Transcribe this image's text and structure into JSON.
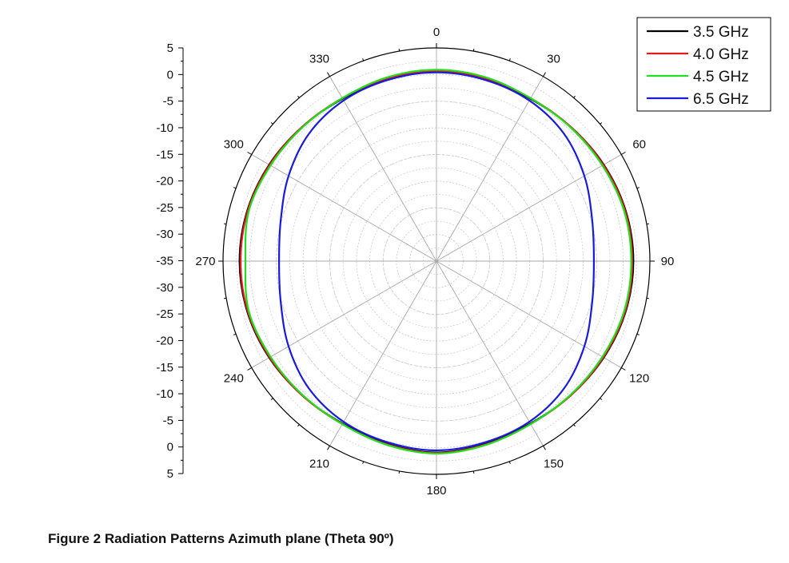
{
  "caption": "Figure 2 Radiation Patterns Azimuth plane (Theta 90º)",
  "chart_data": {
    "type": "polar-line",
    "title": "",
    "angle_direction": "clockwise",
    "angle_zero": "top",
    "angle_ticks": [
      0,
      30,
      60,
      90,
      120,
      150,
      180,
      210,
      240,
      270,
      300,
      330
    ],
    "radial_range": [
      -35,
      5
    ],
    "radial_axis_ticks": [
      "5",
      "0",
      "-5",
      "-10",
      "-15",
      "-20",
      "-25",
      "-30",
      "-35",
      "-30",
      "-25",
      "-20",
      "-15",
      "-10",
      "-5",
      "0",
      "5"
    ],
    "grid": true,
    "legend_position": "top-right",
    "series": [
      {
        "name": "3.5 GHz",
        "color": "#000000",
        "angles": [
          0,
          15,
          30,
          45,
          60,
          75,
          90,
          105,
          120,
          135,
          150,
          165,
          180,
          195,
          210,
          225,
          240,
          255,
          270,
          285,
          300,
          315,
          330,
          345
        ],
        "values": [
          0.5,
          0.4,
          0.2,
          0.6,
          1.2,
          1.7,
          1.9,
          1.7,
          1.2,
          0.6,
          0.2,
          0.5,
          0.9,
          0.5,
          0.2,
          0.6,
          1.2,
          1.7,
          1.9,
          1.7,
          1.2,
          0.6,
          0.2,
          0.4
        ]
      },
      {
        "name": "4.0 GHz",
        "color": "#e31a1c",
        "angles": [
          0,
          15,
          30,
          45,
          60,
          75,
          90,
          105,
          120,
          135,
          150,
          165,
          180,
          195,
          210,
          225,
          240,
          255,
          270,
          285,
          300,
          315,
          330,
          345
        ],
        "values": [
          0.6,
          0.5,
          0.3,
          0.6,
          1.1,
          1.6,
          1.7,
          1.6,
          1.1,
          0.6,
          0.3,
          0.6,
          1.0,
          0.6,
          0.3,
          0.6,
          1.1,
          1.6,
          1.7,
          1.6,
          1.1,
          0.6,
          0.3,
          0.5
        ]
      },
      {
        "name": "4.5 GHz",
        "color": "#1fe01f",
        "angles": [
          0,
          15,
          30,
          45,
          60,
          75,
          90,
          105,
          120,
          135,
          150,
          165,
          180,
          195,
          210,
          225,
          240,
          255,
          270,
          285,
          300,
          315,
          330,
          345
        ],
        "values": [
          0.9,
          0.7,
          0.3,
          0.5,
          0.9,
          1.4,
          1.5,
          1.4,
          0.9,
          0.5,
          0.3,
          0.7,
          1.1,
          0.7,
          0.3,
          0.5,
          0.9,
          1.4,
          0.8,
          1.4,
          0.9,
          0.5,
          0.3,
          0.7
        ]
      },
      {
        "name": "6.5 GHz",
        "color": "#1a1adc",
        "angles": [
          0,
          15,
          30,
          45,
          60,
          75,
          90,
          105,
          120,
          135,
          150,
          165,
          180,
          195,
          210,
          225,
          240,
          255,
          270,
          285,
          300,
          315,
          330,
          345
        ],
        "values": [
          0.4,
          0.2,
          -0.2,
          -1.2,
          -3.0,
          -4.8,
          -5.5,
          -4.8,
          -3.0,
          -1.2,
          -0.2,
          0.2,
          0.5,
          0.2,
          -0.2,
          -1.2,
          -3.0,
          -4.8,
          -5.5,
          -4.8,
          -3.0,
          -1.2,
          -0.2,
          0.2
        ]
      }
    ]
  }
}
